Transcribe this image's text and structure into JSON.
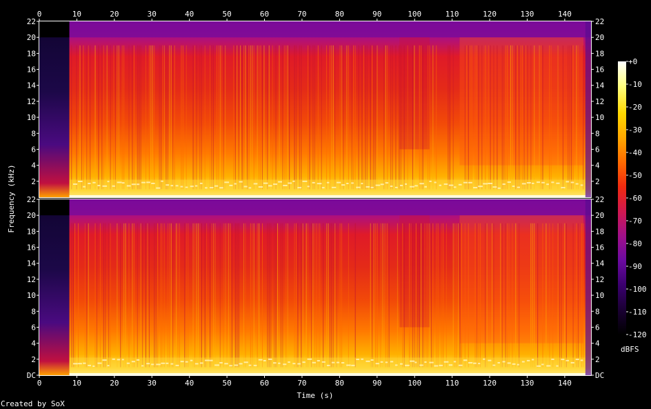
{
  "chart_data": {
    "type": "heatmap",
    "title": "",
    "xlabel": "Time (s)",
    "ylabel": "Frequency (kHz)",
    "colorbar_label": "dBFS",
    "footer": "Created by SoX",
    "x_ticks": [
      "0",
      "10",
      "20",
      "30",
      "40",
      "50",
      "60",
      "70",
      "80",
      "90",
      "100",
      "110",
      "120",
      "130",
      "140"
    ],
    "y_ticks_top": [
      "2",
      "4",
      "6",
      "8",
      "10",
      "12",
      "14",
      "16",
      "18",
      "20",
      "22"
    ],
    "y_ticks_bottom": [
      "DC",
      "2",
      "4",
      "6",
      "8",
      "10",
      "12",
      "14",
      "16",
      "18",
      "20",
      "22"
    ],
    "colorbar_ticks": [
      "+0",
      "-10",
      "-20",
      "-30",
      "-40",
      "-50",
      "-60",
      "-70",
      "-80",
      "-90",
      "-100",
      "-110",
      "-120"
    ],
    "xlim": [
      0,
      147
    ],
    "ylim": [
      0,
      22
    ],
    "clim": [
      -120,
      0
    ],
    "channels": 2,
    "palette": [
      "#000000",
      "#1a0033",
      "#3a006e",
      "#6a0aa0",
      "#a0108a",
      "#d01850",
      "#f02a10",
      "#ff6a00",
      "#ffa800",
      "#ffd800",
      "#ffff80",
      "#ffffff"
    ]
  }
}
